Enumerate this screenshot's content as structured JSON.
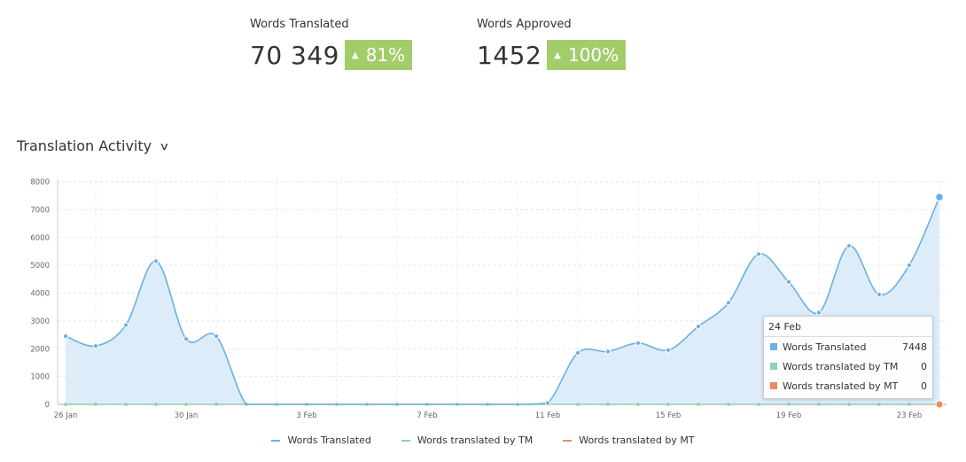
{
  "stats": [
    {
      "label": "Words Translated",
      "value": "70 349",
      "change": "81%",
      "color": "#a3cc6b",
      "arrow": "▲"
    },
    {
      "label": "Words Approved",
      "value": "1452",
      "change": "100%",
      "color": "#a3cc6b",
      "arrow": "▲"
    }
  ],
  "section": {
    "title": "Translation Activity",
    "chevron_icon": "chevron-down-icon"
  },
  "chart_data": {
    "type": "area",
    "title": "Translation Activity",
    "x_start": "26 Jan",
    "x_end": "24 Feb",
    "x_tick_labels": [
      {
        "day": 0,
        "label": "26 Jan"
      },
      {
        "day": 4,
        "label": "30 Jan"
      },
      {
        "day": 8,
        "label": "3 Feb"
      },
      {
        "day": 12,
        "label": "7 Feb"
      },
      {
        "day": 16,
        "label": "11 Feb"
      },
      {
        "day": 20,
        "label": "15 Feb"
      },
      {
        "day": 24,
        "label": "19 Feb"
      },
      {
        "day": 28,
        "label": "23 Feb"
      }
    ],
    "y_ticks": [
      0,
      1000,
      2000,
      3000,
      4000,
      5000,
      6000,
      7000,
      8000
    ],
    "ylim": [
      0,
      8000
    ],
    "grid": true,
    "legend_position": "bottom",
    "series": [
      {
        "name": "Words Translated",
        "color": "#6bb0e0",
        "fill": "#dcedf9",
        "values": [
          2450,
          2100,
          2850,
          5150,
          2350,
          2450,
          0,
          0,
          0,
          0,
          0,
          0,
          0,
          0,
          0,
          0,
          50,
          1850,
          1900,
          2200,
          1950,
          2800,
          3650,
          5400,
          4400,
          3300,
          5700,
          3950,
          5000,
          7448
        ]
      },
      {
        "name": "Words translated by TM",
        "color": "#8fd1b2",
        "values": [
          0,
          0,
          0,
          0,
          0,
          0,
          0,
          0,
          0,
          0,
          0,
          0,
          0,
          0,
          0,
          0,
          0,
          0,
          0,
          0,
          0,
          0,
          0,
          0,
          0,
          0,
          0,
          0,
          0,
          0
        ]
      },
      {
        "name": "Words translated by MT",
        "color": "#f08a5d",
        "values": [
          0,
          0,
          0,
          0,
          0,
          0,
          0,
          0,
          0,
          0,
          0,
          0,
          0,
          0,
          0,
          0,
          0,
          0,
          0,
          0,
          0,
          0,
          0,
          0,
          0,
          0,
          0,
          0,
          0,
          0
        ]
      }
    ]
  },
  "tooltip": {
    "date": "24 Feb",
    "rows": [
      {
        "name": "Words Translated",
        "value": "7448",
        "color": "#6bb0e0"
      },
      {
        "name": "Words translated by TM",
        "value": "0",
        "color": "#8fd1b2"
      },
      {
        "name": "Words translated by MT",
        "value": "0",
        "color": "#f08a5d"
      }
    ]
  }
}
